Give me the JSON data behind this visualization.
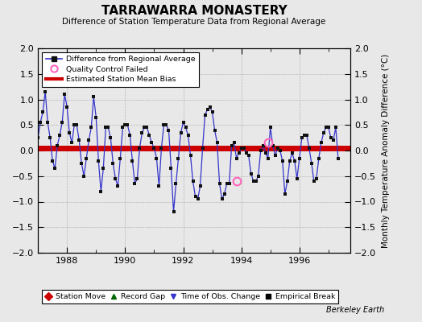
{
  "title": "TARRAWARRA MONASTERY",
  "subtitle": "Difference of Station Temperature Data from Regional Average",
  "ylabel": "Monthly Temperature Anomaly Difference (°C)",
  "credit": "Berkeley Earth",
  "xlim": [
    1987.0,
    1997.75
  ],
  "ylim": [
    -2.0,
    2.0
  ],
  "yticks": [
    -2,
    -1.5,
    -1,
    -0.5,
    0,
    0.5,
    1,
    1.5,
    2
  ],
  "xticks": [
    1988,
    1990,
    1992,
    1994,
    1996
  ],
  "mean_bias": 0.04,
  "line_color": "#3333cc",
  "marker_color": "#111111",
  "bias_color": "#cc0000",
  "qc_color": "#ff66bb",
  "bg_color": "#e8e8e8",
  "plot_bg": "#e8e8e8",
  "data_x": [
    1987.0,
    1987.083,
    1987.167,
    1987.25,
    1987.333,
    1987.417,
    1987.5,
    1987.583,
    1987.667,
    1987.75,
    1987.833,
    1987.917,
    1988.0,
    1988.083,
    1988.167,
    1988.25,
    1988.333,
    1988.417,
    1988.5,
    1988.583,
    1988.667,
    1988.75,
    1988.833,
    1988.917,
    1989.0,
    1989.083,
    1989.167,
    1989.25,
    1989.333,
    1989.417,
    1989.5,
    1989.583,
    1989.667,
    1989.75,
    1989.833,
    1989.917,
    1990.0,
    1990.083,
    1990.167,
    1990.25,
    1990.333,
    1990.417,
    1990.5,
    1990.583,
    1990.667,
    1990.75,
    1990.833,
    1990.917,
    1991.0,
    1991.083,
    1991.167,
    1991.25,
    1991.333,
    1991.417,
    1991.5,
    1991.583,
    1991.667,
    1991.75,
    1991.833,
    1991.917,
    1992.0,
    1992.083,
    1992.167,
    1992.25,
    1992.333,
    1992.417,
    1992.5,
    1992.583,
    1992.667,
    1992.75,
    1992.833,
    1992.917,
    1993.0,
    1993.083,
    1993.167,
    1993.25,
    1993.333,
    1993.417,
    1993.5,
    1993.583,
    1993.667,
    1993.75,
    1993.833,
    1993.917,
    1994.0,
    1994.083,
    1994.167,
    1994.25,
    1994.333,
    1994.417,
    1994.5,
    1994.583,
    1994.667,
    1994.75,
    1994.833,
    1994.917,
    1995.0,
    1995.083,
    1995.167,
    1995.25,
    1995.333,
    1995.417,
    1995.5,
    1995.583,
    1995.667,
    1995.75,
    1995.833,
    1995.917,
    1996.0,
    1996.083,
    1996.167,
    1996.25,
    1996.333,
    1996.417,
    1996.5,
    1996.583,
    1996.667,
    1996.75,
    1996.833,
    1996.917,
    1997.0,
    1997.083,
    1997.167,
    1997.25,
    1997.333
  ],
  "data_y": [
    0.25,
    0.55,
    0.75,
    1.15,
    0.55,
    0.25,
    -0.2,
    -0.35,
    0.1,
    0.3,
    0.55,
    1.1,
    0.85,
    0.35,
    0.15,
    0.5,
    0.5,
    0.2,
    -0.25,
    -0.5,
    -0.15,
    0.2,
    0.45,
    1.05,
    0.65,
    -0.2,
    -0.8,
    -0.35,
    0.45,
    0.45,
    0.25,
    -0.25,
    -0.55,
    -0.7,
    -0.15,
    0.45,
    0.5,
    0.5,
    0.3,
    -0.2,
    -0.65,
    -0.55,
    0.05,
    0.35,
    0.45,
    0.45,
    0.3,
    0.15,
    0.05,
    -0.15,
    -0.7,
    0.05,
    0.5,
    0.5,
    0.4,
    -0.35,
    -1.2,
    -0.65,
    -0.15,
    0.35,
    0.55,
    0.45,
    0.3,
    -0.1,
    -0.6,
    -0.9,
    -0.95,
    -0.7,
    0.05,
    0.7,
    0.8,
    0.85,
    0.75,
    0.4,
    0.15,
    -0.65,
    -0.95,
    -0.85,
    -0.65,
    -0.65,
    0.1,
    0.15,
    -0.15,
    -0.05,
    0.05,
    0.05,
    -0.05,
    -0.1,
    -0.45,
    -0.6,
    -0.6,
    -0.5,
    0.0,
    0.1,
    -0.05,
    -0.15,
    0.45,
    0.1,
    -0.1,
    0.05,
    0.0,
    -0.2,
    -0.85,
    -0.6,
    -0.2,
    -0.05,
    -0.2,
    -0.55,
    -0.15,
    0.25,
    0.3,
    0.3,
    0.05,
    -0.25,
    -0.6,
    -0.55,
    -0.15,
    0.15,
    0.35,
    0.45,
    0.45,
    0.25,
    0.2,
    0.45,
    -0.15
  ],
  "qc_points_x": [
    1993.833,
    1994.917
  ],
  "qc_points_y": [
    -0.6,
    0.15
  ]
}
